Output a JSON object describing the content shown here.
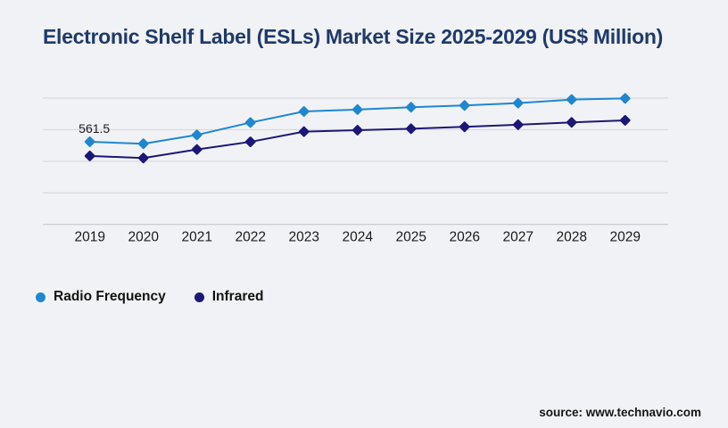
{
  "title": {
    "text": "Electronic Shelf Label (ESLs) Market Size 2025-2029 (US$ Million)"
  },
  "source": {
    "text": "source: www.technavio.com"
  },
  "colors": {
    "background": "#f1f2f5",
    "title": "#1f3a6a",
    "grid": "#d9d9dd",
    "axis": "#c6c6cc",
    "text": "#1a1a1a",
    "radio_frequency": "#1e87d0",
    "infrared": "#1d1775"
  },
  "chart_data": {
    "type": "line",
    "title": "Electronic Shelf Label (ESLs) Market Size 2025-2029 (US$ Million)",
    "xlabel": "",
    "ylabel": "",
    "x": [
      "2019",
      "2020",
      "2021",
      "2022",
      "2023",
      "2024",
      "2025",
      "2026",
      "2027",
      "2028",
      "2029"
    ],
    "series": [
      {
        "name": "Radio Frequency",
        "color": "#1e87d0",
        "marker": "diamond",
        "values": [
          561.5,
          548,
          608,
          692,
          767,
          780,
          796,
          808,
          824,
          848,
          856
        ]
      },
      {
        "name": "Infrared",
        "color": "#1d1775",
        "marker": "diamond",
        "values": [
          465,
          451,
          509,
          561,
          630,
          640,
          650,
          663,
          677,
          693,
          707
        ]
      }
    ],
    "annotations": [
      {
        "series": "Radio Frequency",
        "x": "2019",
        "text": "561.5"
      }
    ],
    "ylim": [
      0,
      1070
    ],
    "y_axis_tick_labels_visible": false,
    "grid": true,
    "gridline_count": 5,
    "legend_position": "bottom-left"
  }
}
